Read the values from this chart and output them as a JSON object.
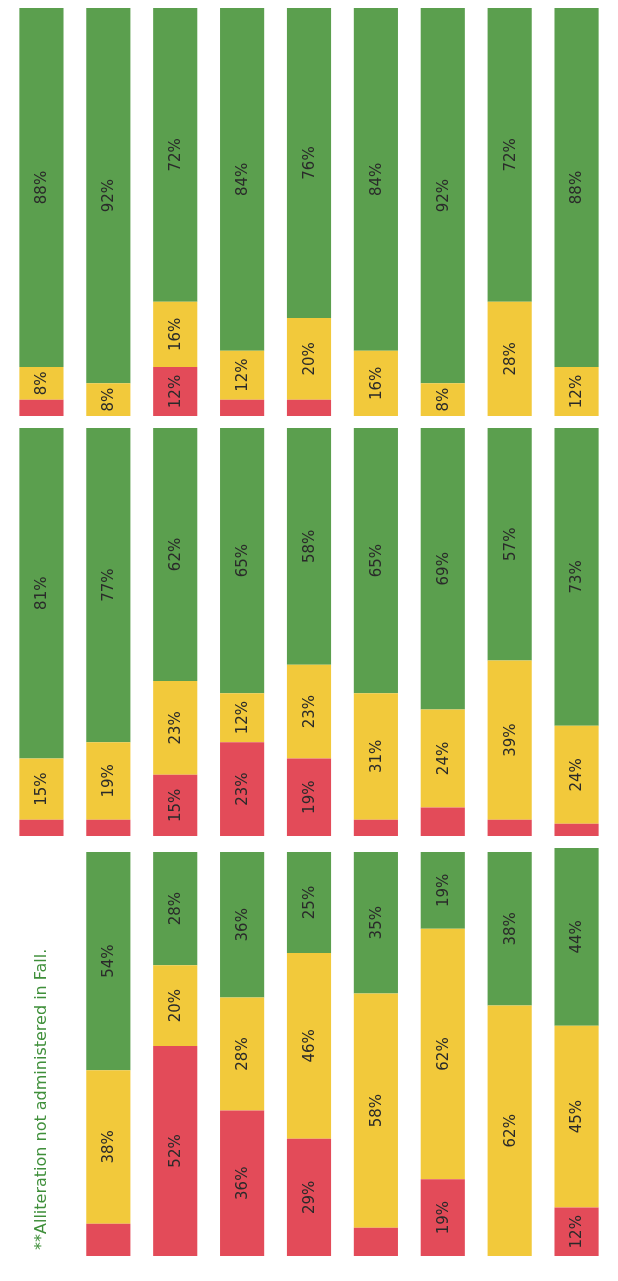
{
  "chart_data": [
    {
      "type": "bar",
      "stacked": true,
      "categories": [
        null,
        null,
        null,
        null,
        null,
        null,
        null,
        null,
        null
      ],
      "series": [
        {
          "color": "#e34b59",
          "values": [
            4,
            0,
            12,
            4,
            4,
            0,
            0,
            0,
            0
          ],
          "value_labels": [
            null,
            null,
            "12%",
            null,
            null,
            null,
            null,
            null,
            null
          ]
        },
        {
          "color": "#f2c93b",
          "values": [
            8,
            8,
            16,
            12,
            20,
            16,
            8,
            28,
            12
          ],
          "value_labels": [
            "8%",
            "8%",
            "16%",
            "12%",
            "20%",
            "16%",
            "8%",
            "28%",
            "12%"
          ]
        },
        {
          "color": "#5b9f4e",
          "values": [
            88,
            92,
            72,
            84,
            76,
            84,
            92,
            72,
            88
          ],
          "value_labels": [
            "88%",
            "92%",
            "72%",
            "84%",
            "76%",
            "84%",
            "92%",
            "72%",
            "88%"
          ]
        }
      ]
    },
    {
      "type": "bar",
      "stacked": true,
      "categories": [
        null,
        null,
        null,
        null,
        null,
        null,
        null,
        null,
        null
      ],
      "series": [
        {
          "color": "#e34b59",
          "values": [
            4,
            4,
            15,
            23,
            19,
            4,
            7,
            4,
            3
          ],
          "value_labels": [
            null,
            null,
            "15%",
            "23%",
            "19%",
            null,
            null,
            null,
            null
          ]
        },
        {
          "color": "#f2c93b",
          "values": [
            15,
            19,
            23,
            12,
            23,
            31,
            24,
            39,
            24
          ],
          "value_labels": [
            "15%",
            "19%",
            "23%",
            "12%",
            "23%",
            "31%",
            "24%",
            "39%",
            "24%"
          ]
        },
        {
          "color": "#5b9f4e",
          "values": [
            81,
            77,
            62,
            65,
            58,
            65,
            69,
            57,
            73
          ],
          "value_labels": [
            "81%",
            "77%",
            "62%",
            "65%",
            "58%",
            "65%",
            "69%",
            "57%",
            "73%"
          ]
        }
      ]
    },
    {
      "type": "bar",
      "stacked": true,
      "categories": [
        null,
        null,
        null,
        null,
        null,
        null,
        null,
        null,
        null
      ],
      "annotations": [
        "**Alliteration not administered in Fall."
      ],
      "series": [
        {
          "color": "#e34b59",
          "values": [
            null,
            8,
            52,
            36,
            29,
            7,
            19,
            0,
            12
          ],
          "value_labels": [
            null,
            null,
            "52%",
            "36%",
            "29%",
            null,
            "19%",
            null,
            "12%"
          ]
        },
        {
          "color": "#f2c93b",
          "values": [
            null,
            38,
            20,
            28,
            46,
            58,
            62,
            62,
            45
          ],
          "value_labels": [
            null,
            "38%",
            "20%",
            "28%",
            "46%",
            "58%",
            "62%",
            "62%",
            "45%"
          ]
        },
        {
          "color": "#5b9f4e",
          "values": [
            null,
            54,
            28,
            36,
            25,
            35,
            19,
            38,
            44
          ],
          "value_labels": [
            null,
            "54%",
            "28%",
            "36%",
            "25%",
            "35%",
            "19%",
            "38%",
            "44%"
          ]
        }
      ]
    }
  ]
}
